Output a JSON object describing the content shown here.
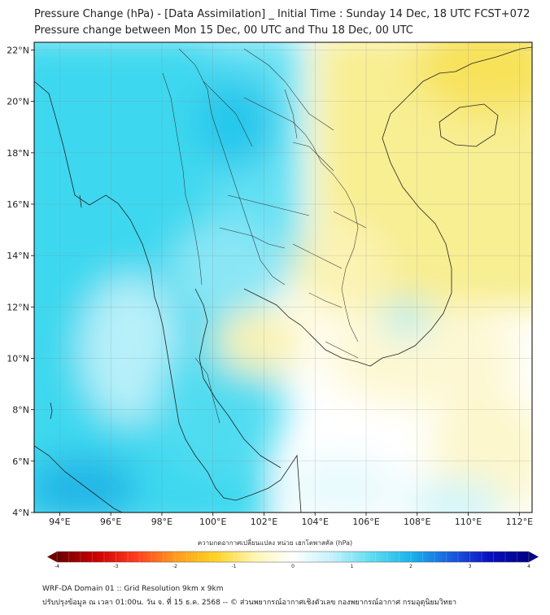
{
  "header": {
    "title": "Pressure Change (hPa) - [Data Assimilation] _ Initial Time : Sunday 14 Dec, 18 UTC FCST+072",
    "subtitle": "Pressure change between Mon 15 Dec, 00 UTC and Thu 18 Dec, 00 UTC"
  },
  "map": {
    "lon_ticks": [
      {
        "value": 94,
        "label": "94°E"
      },
      {
        "value": 96,
        "label": "96°E"
      },
      {
        "value": 98,
        "label": "98°E"
      },
      {
        "value": 100,
        "label": "100°E"
      },
      {
        "value": 102,
        "label": "102°E"
      },
      {
        "value": 104,
        "label": "104°E"
      },
      {
        "value": 106,
        "label": "106°E"
      },
      {
        "value": 108,
        "label": "108°E"
      },
      {
        "value": 110,
        "label": "110°E"
      },
      {
        "value": 112,
        "label": "112°E"
      }
    ],
    "lat_ticks": [
      {
        "value": 22,
        "label": "22°N"
      },
      {
        "value": 20,
        "label": "20°N"
      },
      {
        "value": 18,
        "label": "18°N"
      },
      {
        "value": 16,
        "label": "16°N"
      },
      {
        "value": 14,
        "label": "14°N"
      },
      {
        "value": 12,
        "label": "12°N"
      },
      {
        "value": 10,
        "label": "10°N"
      },
      {
        "value": 8,
        "label": "8°N"
      },
      {
        "value": 6,
        "label": "6°N"
      },
      {
        "value": 4,
        "label": "4°N"
      }
    ],
    "lon_range": [
      93,
      112.5
    ],
    "lat_range": [
      4,
      22.3
    ],
    "colors": {
      "negative": "#f5e98a",
      "neutral": "#ffffff",
      "positive": "#35d6ee",
      "strong_positive": "#1e9ee0"
    }
  },
  "colorbar": {
    "label": "ความกดอากาศเปลี่ยนแปลง หน่วย เฮกโตพาสคัล (hPa)",
    "min": -4,
    "max": 4,
    "ticks": [
      {
        "value": -4,
        "label": "-4"
      },
      {
        "value": -3,
        "label": "-3"
      },
      {
        "value": -2,
        "label": "-2"
      },
      {
        "value": -1,
        "label": "-1"
      },
      {
        "value": 0,
        "label": "0"
      },
      {
        "value": 1,
        "label": "1"
      },
      {
        "value": 2,
        "label": "2"
      },
      {
        "value": 3,
        "label": "3"
      },
      {
        "value": 4,
        "label": "4"
      }
    ],
    "stops": [
      "#6b0000",
      "#cc0000",
      "#ff3b1f",
      "#ff9a1f",
      "#ffd21f",
      "#fff5b0",
      "#ffffff",
      "#c4f2fb",
      "#5fdcf2",
      "#1ab4ea",
      "#1a5fe0",
      "#0a10c0",
      "#000080"
    ]
  },
  "footer": {
    "line1": "WRF-DA Domain 01 :: Grid Resolution 9km x 9km",
    "line2": "ปรับปรุงข้อมูล ณ เวลา 01:00น. วัน จ. ที่ 15 ธ.ค. 2568 -- © ส่วนพยากรณ์อากาศเชิงตัวเลข กองพยากรณ์อากาศ กรมอุตุนิยมวิทยา"
  }
}
